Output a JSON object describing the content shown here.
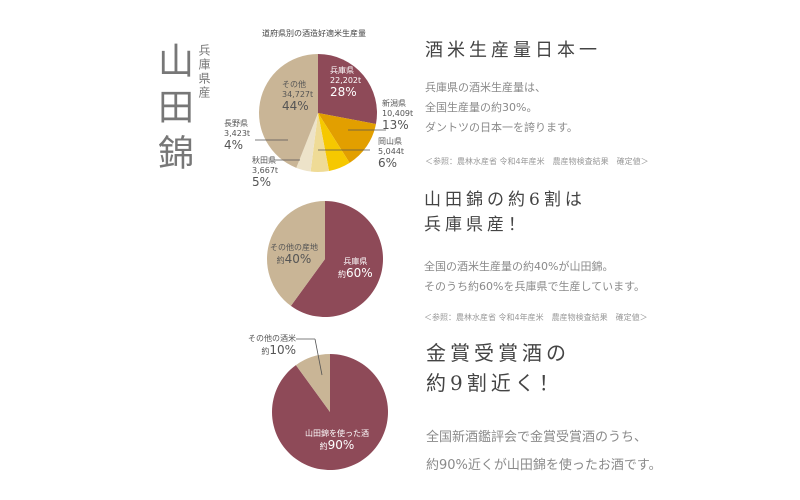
{
  "side_title": {
    "main": "山田錦",
    "sub": "兵庫県産"
  },
  "section1": {
    "heading": "酒米生産量日本一",
    "body": [
      "兵庫県の酒米生産量は、",
      "全国生産量の約30%。",
      "ダントツの日本一を誇ります。"
    ],
    "note": "＜参照：農林水産省 令和4年産米　農産物検査結果　確定値＞"
  },
  "section2": {
    "heading": [
      "山田錦の約6割は",
      "兵庫県産！"
    ],
    "body": [
      "全国の酒米生産量の約40%が山田錦。",
      "そのうち約60%を兵庫県で生産しています。"
    ],
    "note": "＜参照：農林水産省 令和4年産米　農産物検査結果　確定値＞"
  },
  "section3": {
    "heading": [
      "金賞受賞酒の",
      "約9割近く！"
    ],
    "body": [
      "全国新酒鑑評会で金賞受賞酒のうち、",
      "約90%近くが山田錦を使ったお酒です。"
    ]
  },
  "chart_data": [
    {
      "type": "pie",
      "title": "道府県別の酒造好適米生産量",
      "start": "top",
      "direction": "clockwise",
      "slices": [
        {
          "label": "兵庫県",
          "amount": "22,202t",
          "percent_label": "28%",
          "value": 28,
          "color": "#8e4a58"
        },
        {
          "label": "新潟県",
          "amount": "10,409t",
          "percent_label": "13%",
          "value": 13,
          "color": "#e29f00"
        },
        {
          "label": "岡山県",
          "amount": "5,044t",
          "percent_label": "6%",
          "value": 6,
          "color": "#f6c800"
        },
        {
          "label": "秋田県",
          "amount": "3,667t",
          "percent_label": "5%",
          "value": 5,
          "color": "#efdb96"
        },
        {
          "label": "長野県",
          "amount": "3,423t",
          "percent_label": "4%",
          "value": 4,
          "color": "#ede3c9"
        },
        {
          "label": "その他",
          "amount": "34,727t",
          "percent_label": "44%",
          "value": 44,
          "color": "#c9b596"
        }
      ]
    },
    {
      "type": "pie",
      "start": "top",
      "direction": "clockwise",
      "slices": [
        {
          "label": "兵庫県",
          "prefix": "約",
          "percent_label": "60%",
          "value": 60,
          "color": "#8e4a58"
        },
        {
          "label": "その他の産地",
          "prefix": "約",
          "percent_label": "40%",
          "value": 40,
          "color": "#c9b596"
        }
      ]
    },
    {
      "type": "pie",
      "start": "top",
      "direction": "clockwise",
      "slices": [
        {
          "label": "山田錦を使った酒",
          "prefix": "約",
          "percent_label": "90%",
          "value": 90,
          "color": "#8e4a58"
        },
        {
          "label": "その他の酒米",
          "prefix": "約",
          "percent_label": "10%",
          "value": 10,
          "color": "#c9b596"
        }
      ]
    }
  ]
}
